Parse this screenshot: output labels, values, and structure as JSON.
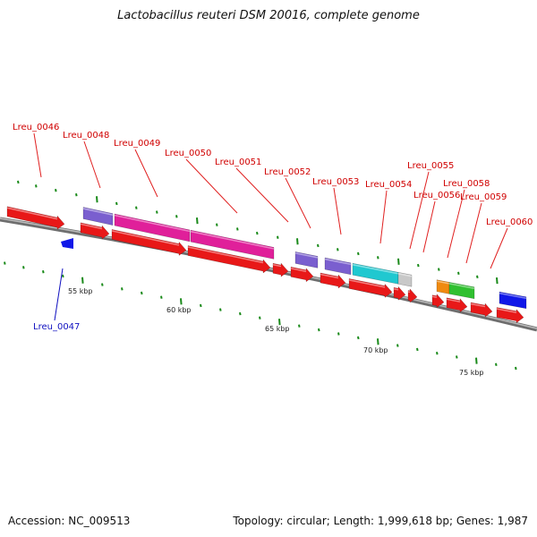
{
  "title": "Lactobacillus reuteri DSM 20016, complete genome",
  "footer": {
    "accession": "Accession: NC_009513",
    "summary": "Topology: circular; Length: 1,999,618 bp; Genes: 1,987"
  },
  "colors": {
    "forward_cds": "#e81818",
    "reverse_cds": "#1018e8",
    "label_forward": "#d00000",
    "label_reverse": "#1010c0",
    "backbone": "#8c8c8c",
    "ticks": "#1a8a1a",
    "cog_purple": "#7a5fcf",
    "cog_magenta": "#e0209a",
    "cog_cyan": "#20c8d0",
    "cog_orange": "#f08a10",
    "cog_green": "#30c030",
    "cog_grey": "#c8c8c8"
  },
  "scale_labels": [
    "55 kbp",
    "60 kbp",
    "65 kbp",
    "70 kbp",
    "75 kbp"
  ],
  "gene_labels": [
    {
      "id": "Lreu_0046",
      "strand": "forward"
    },
    {
      "id": "Lreu_0047",
      "strand": "reverse"
    },
    {
      "id": "Lreu_0048",
      "strand": "forward"
    },
    {
      "id": "Lreu_0049",
      "strand": "forward"
    },
    {
      "id": "Lreu_0050",
      "strand": "forward"
    },
    {
      "id": "Lreu_0051",
      "strand": "forward"
    },
    {
      "id": "Lreu_0052",
      "strand": "forward"
    },
    {
      "id": "Lreu_0053",
      "strand": "forward"
    },
    {
      "id": "Lreu_0054",
      "strand": "forward"
    },
    {
      "id": "Lreu_0055",
      "strand": "forward"
    },
    {
      "id": "Lreu_0056",
      "strand": "forward"
    },
    {
      "id": "Lreu_0058",
      "strand": "forward"
    },
    {
      "id": "Lreu_0059",
      "strand": "forward"
    },
    {
      "id": "Lreu_0060",
      "strand": "forward"
    }
  ]
}
